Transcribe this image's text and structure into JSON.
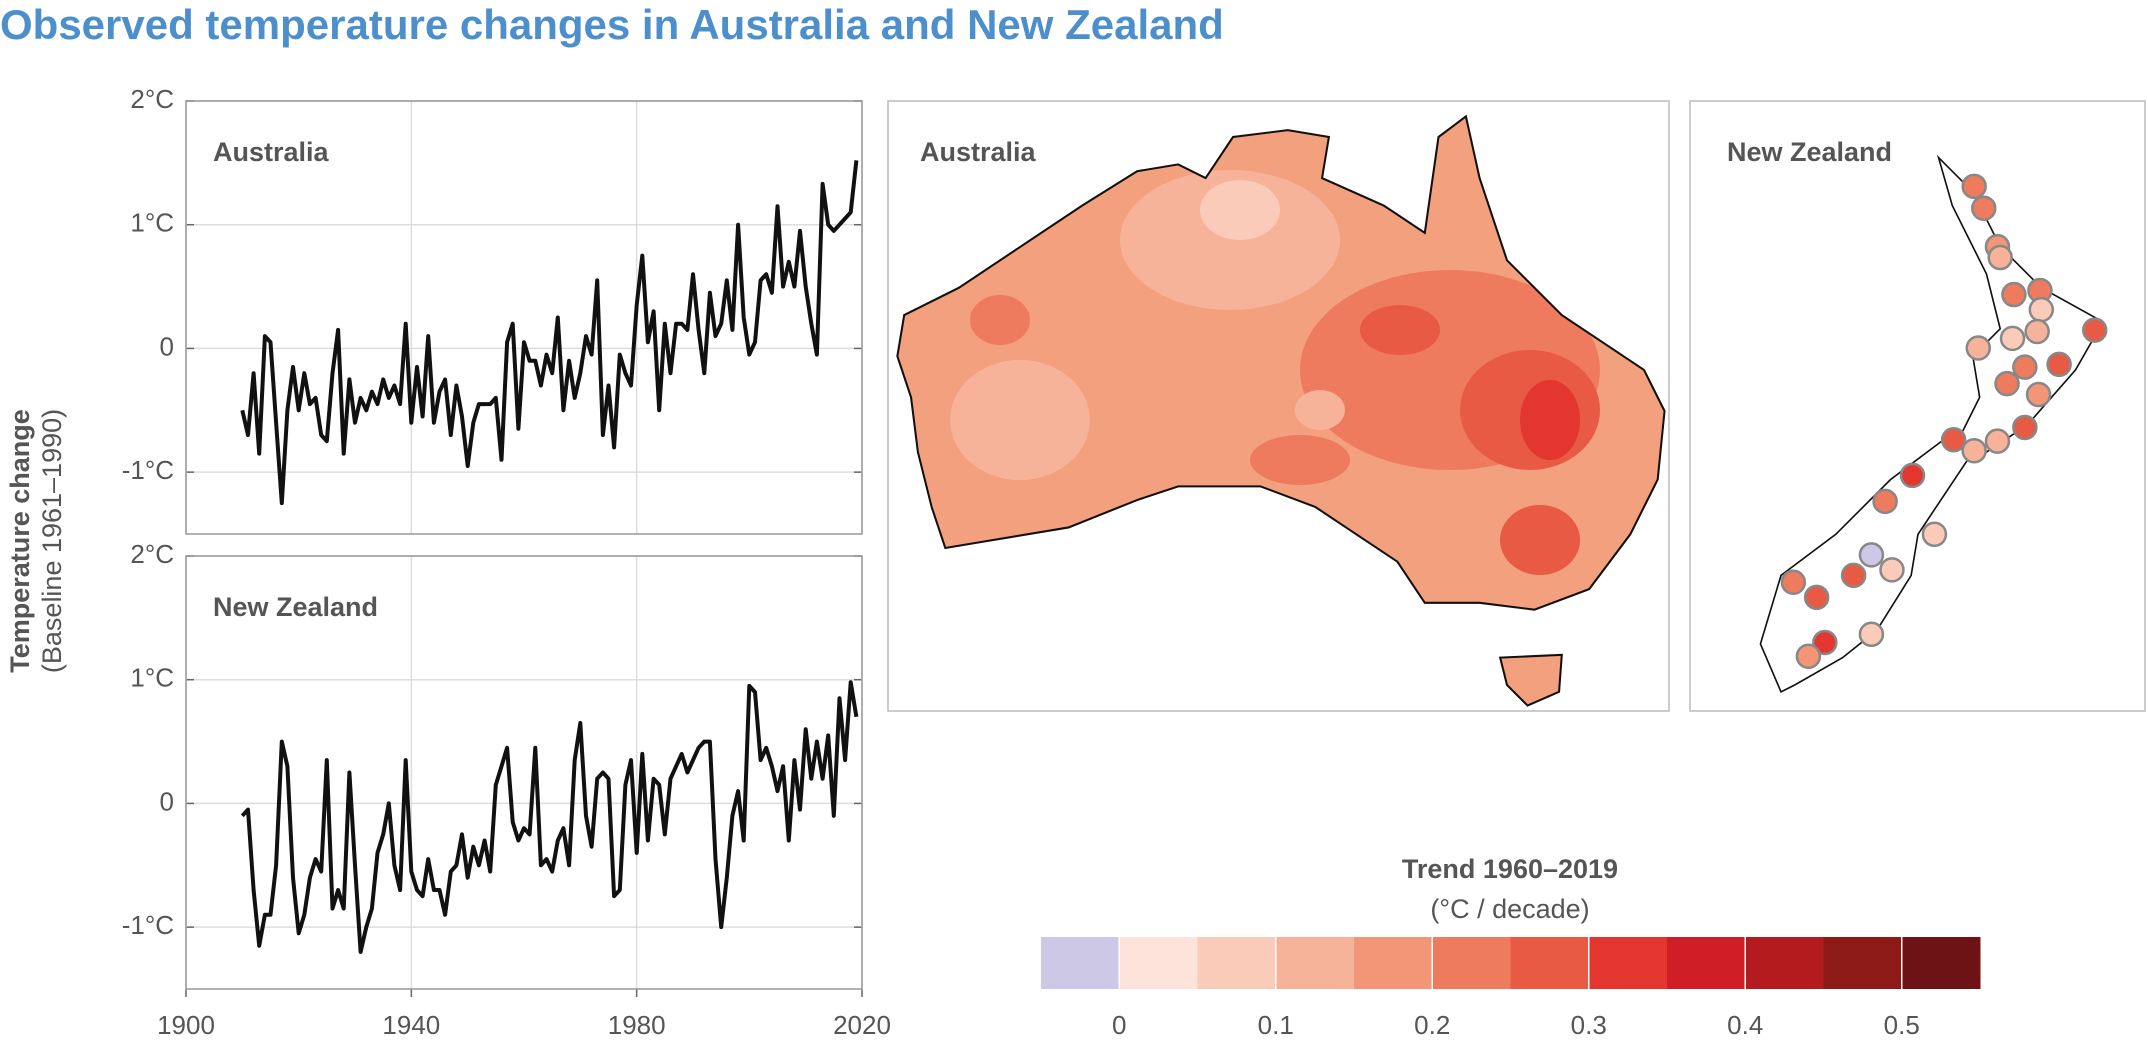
{
  "title": "Observed temperature changes in Australia and New Zealand",
  "ylabel": "Temperature change",
  "ylabel_sub": "(Baseline 1961–1990)",
  "chart_data": [
    {
      "type": "line",
      "title": "Australia",
      "color": "#111111",
      "x": [
        1910,
        1911,
        1912,
        1913,
        1914,
        1915,
        1916,
        1917,
        1918,
        1919,
        1920,
        1921,
        1922,
        1923,
        1924,
        1925,
        1926,
        1927,
        1928,
        1929,
        1930,
        1931,
        1932,
        1933,
        1934,
        1935,
        1936,
        1937,
        1938,
        1939,
        1940,
        1941,
        1942,
        1943,
        1944,
        1945,
        1946,
        1947,
        1948,
        1949,
        1950,
        1951,
        1952,
        1953,
        1954,
        1955,
        1956,
        1957,
        1958,
        1959,
        1960,
        1961,
        1962,
        1963,
        1964,
        1965,
        1966,
        1967,
        1968,
        1969,
        1970,
        1971,
        1972,
        1973,
        1974,
        1975,
        1976,
        1977,
        1978,
        1979,
        1980,
        1981,
        1982,
        1983,
        1984,
        1985,
        1986,
        1987,
        1988,
        1989,
        1990,
        1991,
        1992,
        1993,
        1994,
        1995,
        1996,
        1997,
        1998,
        1999,
        2000,
        2001,
        2002,
        2003,
        2004,
        2005,
        2006,
        2007,
        2008,
        2009,
        2010,
        2011,
        2012,
        2013,
        2014,
        2015,
        2016,
        2017,
        2018,
        2019
      ],
      "values": [
        -0.5,
        -0.7,
        -0.2,
        -0.85,
        0.1,
        0.05,
        -0.6,
        -1.25,
        -0.5,
        -0.15,
        -0.5,
        -0.2,
        -0.45,
        -0.4,
        -0.7,
        -0.75,
        -0.2,
        0.15,
        -0.85,
        -0.25,
        -0.6,
        -0.4,
        -0.5,
        -0.35,
        -0.45,
        -0.25,
        -0.4,
        -0.3,
        -0.45,
        0.2,
        -0.6,
        -0.15,
        -0.55,
        0.1,
        -0.6,
        -0.35,
        -0.25,
        -0.7,
        -0.3,
        -0.55,
        -0.95,
        -0.6,
        -0.45,
        -0.45,
        -0.45,
        -0.4,
        -0.9,
        0.05,
        0.2,
        -0.65,
        0.05,
        -0.1,
        -0.1,
        -0.3,
        -0.05,
        -0.2,
        0.25,
        -0.5,
        -0.1,
        -0.4,
        -0.2,
        0.1,
        -0.05,
        0.55,
        -0.7,
        -0.3,
        -0.8,
        -0.05,
        -0.2,
        -0.3,
        0.35,
        0.75,
        0.05,
        0.3,
        -0.5,
        0.2,
        -0.2,
        0.2,
        0.2,
        0.15,
        0.6,
        0.15,
        -0.2,
        0.45,
        0.1,
        0.2,
        0.55,
        0.15,
        1.0,
        0.25,
        -0.05,
        0.05,
        0.55,
        0.6,
        0.45,
        1.15,
        0.5,
        0.7,
        0.5,
        0.95,
        0.5,
        0.2,
        -0.05,
        1.33,
        1.0,
        0.95,
        1.0,
        1.05,
        1.1,
        1.52
      ],
      "xlim": [
        1900,
        2020
      ],
      "xticks": [
        1900,
        1940,
        1980,
        2020
      ],
      "ylim": [
        -1.5,
        2
      ],
      "yticks": [
        {
          "value": 2,
          "label": "2°C"
        },
        {
          "value": 1,
          "label": "1°C"
        },
        0,
        {
          "value": -1,
          "label": "-1°C"
        }
      ],
      "grid": true
    },
    {
      "type": "line",
      "title": "New Zealand",
      "color": "#111111",
      "x": [
        1910,
        1911,
        1912,
        1913,
        1914,
        1915,
        1916,
        1917,
        1918,
        1919,
        1920,
        1921,
        1922,
        1923,
        1924,
        1925,
        1926,
        1927,
        1928,
        1929,
        1930,
        1931,
        1932,
        1933,
        1934,
        1935,
        1936,
        1937,
        1938,
        1939,
        1940,
        1941,
        1942,
        1943,
        1944,
        1945,
        1946,
        1947,
        1948,
        1949,
        1950,
        1951,
        1952,
        1953,
        1954,
        1955,
        1956,
        1957,
        1958,
        1959,
        1960,
        1961,
        1962,
        1963,
        1964,
        1965,
        1966,
        1967,
        1968,
        1969,
        1970,
        1971,
        1972,
        1973,
        1974,
        1975,
        1976,
        1977,
        1978,
        1979,
        1980,
        1981,
        1982,
        1983,
        1984,
        1985,
        1986,
        1987,
        1988,
        1989,
        1990,
        1991,
        1992,
        1993,
        1994,
        1995,
        1996,
        1997,
        1998,
        1999,
        2000,
        2001,
        2002,
        2003,
        2004,
        2005,
        2006,
        2007,
        2008,
        2009,
        2010,
        2011,
        2012,
        2013,
        2014,
        2015,
        2016,
        2017,
        2018,
        2019
      ],
      "values": [
        -0.1,
        -0.05,
        -0.7,
        -1.15,
        -0.9,
        -0.9,
        -0.5,
        0.5,
        0.3,
        -0.6,
        -1.05,
        -0.9,
        -0.6,
        -0.45,
        -0.55,
        0.35,
        -0.85,
        -0.7,
        -0.85,
        0.25,
        -0.5,
        -1.2,
        -1.0,
        -0.85,
        -0.4,
        -0.25,
        0.0,
        -0.5,
        -0.7,
        0.35,
        -0.55,
        -0.7,
        -0.75,
        -0.45,
        -0.7,
        -0.7,
        -0.9,
        -0.55,
        -0.5,
        -0.25,
        -0.6,
        -0.35,
        -0.5,
        -0.3,
        -0.55,
        0.15,
        0.3,
        0.45,
        -0.15,
        -0.3,
        -0.2,
        -0.25,
        0.45,
        -0.5,
        -0.45,
        -0.55,
        -0.3,
        -0.2,
        -0.5,
        0.35,
        0.65,
        -0.1,
        -0.35,
        0.2,
        0.25,
        0.2,
        -0.75,
        -0.7,
        0.15,
        0.35,
        -0.4,
        0.4,
        -0.3,
        0.2,
        0.15,
        -0.25,
        0.2,
        0.3,
        0.4,
        0.25,
        0.35,
        0.45,
        0.5,
        0.5,
        -0.45,
        -1.0,
        -0.6,
        -0.1,
        0.1,
        -0.3,
        0.95,
        0.9,
        0.35,
        0.45,
        0.3,
        0.1,
        0.3,
        -0.3,
        0.35,
        -0.05,
        0.6,
        0.2,
        0.5,
        0.2,
        0.55,
        -0.1,
        0.85,
        0.35,
        0.98,
        0.7
      ],
      "xlim": [
        1900,
        2020
      ],
      "xticks": [
        1900,
        1940,
        1980,
        2020
      ],
      "ylim": [
        -1.5,
        2
      ],
      "yticks": [
        {
          "value": 2,
          "label": "2°C"
        },
        {
          "value": 1,
          "label": "1°C"
        },
        0,
        {
          "value": -1,
          "label": "-1°C"
        }
      ],
      "grid": true
    }
  ],
  "maps": {
    "australia_label": "Australia",
    "nz_label": "New Zealand",
    "nz_stations": {
      "values": [
        0.22,
        0.23,
        0.17,
        0.1,
        0.2,
        0.22,
        0.08,
        0.1,
        0.05,
        0.12,
        0.25,
        0.22,
        0.25,
        0.22,
        0.15,
        0.27,
        0.14,
        0.25,
        0.13,
        0.32,
        0.2,
        0.08,
        -0.03,
        0.07,
        0.27,
        0.2,
        0.25,
        0.05,
        0.3,
        0.18
      ]
    }
  },
  "colorbar": {
    "title": "Trend 1960–2019",
    "unit_label": "(°C / decade)",
    "bins": [
      -0.05,
      0,
      0.05,
      0.1,
      0.15,
      0.2,
      0.25,
      0.3,
      0.35,
      0.4,
      0.45,
      0.5,
      0.55
    ],
    "colors": [
      "#cdc8e6",
      "#fde3d9",
      "#fbcbb9",
      "#f7b39a",
      "#f39577",
      "#ee7b5e",
      "#e85a43",
      "#e2362e",
      "#cf1e25",
      "#b31b1f",
      "#8e1a18",
      "#6e1315"
    ],
    "ticks": [
      0,
      0.1,
      0.2,
      0.3,
      0.4,
      0.5
    ]
  }
}
